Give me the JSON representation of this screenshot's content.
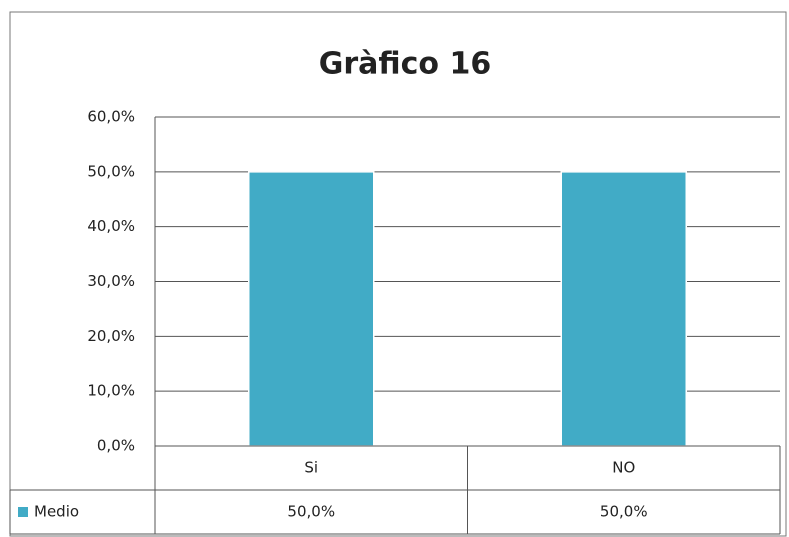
{
  "chart_data": {
    "type": "bar",
    "title": "Gràfico 16",
    "categories": [
      "Si",
      "NO"
    ],
    "series": [
      {
        "name": "Medio",
        "color": "#41abc6",
        "values": [
          50,
          50
        ],
        "value_labels": [
          "50,0%",
          "50,0%"
        ]
      }
    ],
    "ylim": [
      0,
      60
    ],
    "yticks": [
      {
        "value": 0,
        "label": "0,0%"
      },
      {
        "value": 10,
        "label": "10,0%"
      },
      {
        "value": 20,
        "label": "20,0%"
      },
      {
        "value": 30,
        "label": "30,0%"
      },
      {
        "value": 40,
        "label": "40,0%"
      },
      {
        "value": 50,
        "label": "50,0%"
      },
      {
        "value": 60,
        "label": "60,0%"
      }
    ],
    "grid": true,
    "data_table": true
  }
}
